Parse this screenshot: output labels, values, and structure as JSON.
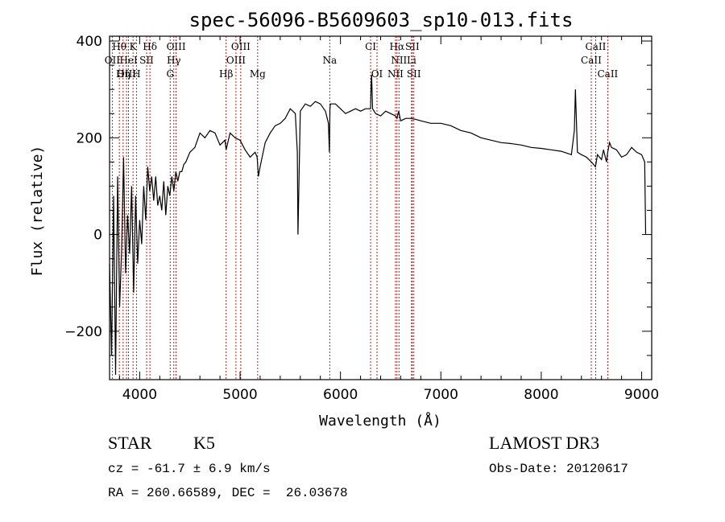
{
  "chart_data": {
    "type": "line",
    "title": "spec-56096-B5609603_sp10-013.fits",
    "xlabel": "Wavelength (Å)",
    "ylabel": "Flux (relative)",
    "xlim": [
      3700,
      9100
    ],
    "ylim": [
      -300,
      410
    ],
    "x_ticks": [
      4000,
      5000,
      6000,
      7000,
      8000,
      9000
    ],
    "y_ticks": [
      -200,
      0,
      200,
      400
    ],
    "grid": false,
    "series": [
      {
        "color": "#000000",
        "x": [
          3700,
          3720,
          3740,
          3760,
          3780,
          3800,
          3820,
          3840,
          3860,
          3880,
          3900,
          3920,
          3940,
          3960,
          3980,
          4000,
          4020,
          4040,
          4060,
          4080,
          4100,
          4120,
          4140,
          4160,
          4180,
          4200,
          4220,
          4240,
          4260,
          4280,
          4300,
          4320,
          4340,
          4360,
          4380,
          4400,
          4420,
          4440,
          4460,
          4480,
          4500,
          4550,
          4600,
          4650,
          4700,
          4750,
          4800,
          4850,
          4861,
          4900,
          4950,
          5000,
          5050,
          5100,
          5150,
          5170,
          5183,
          5200,
          5250,
          5300,
          5350,
          5400,
          5450,
          5500,
          5550,
          5570,
          5577,
          5600,
          5650,
          5700,
          5750,
          5800,
          5850,
          5880,
          5890,
          5895,
          5900,
          5950,
          6000,
          6050,
          6100,
          6150,
          6200,
          6250,
          6300,
          6305,
          6310,
          6320,
          6350,
          6400,
          6450,
          6500,
          6550,
          6563,
          6580,
          6600,
          6650,
          6700,
          6750,
          6800,
          6900,
          7000,
          7100,
          7200,
          7300,
          7400,
          7500,
          7600,
          7700,
          7800,
          7900,
          8000,
          8100,
          8200,
          8300,
          8330,
          8340,
          8360,
          8400,
          8450,
          8500,
          8540,
          8560,
          8600,
          8620,
          8650,
          8662,
          8680,
          8700,
          8750,
          8800,
          8850,
          8900,
          8950,
          9000,
          9030,
          9040
        ],
        "y": [
          -60,
          -250,
          80,
          -290,
          120,
          -150,
          -30,
          160,
          -80,
          40,
          -40,
          100,
          -120,
          80,
          -60,
          30,
          -20,
          100,
          30,
          140,
          90,
          120,
          70,
          120,
          60,
          80,
          50,
          110,
          40,
          100,
          80,
          120,
          90,
          130,
          110,
          130,
          130,
          145,
          150,
          160,
          170,
          180,
          210,
          200,
          215,
          210,
          185,
          195,
          175,
          210,
          200,
          195,
          175,
          160,
          170,
          160,
          120,
          140,
          190,
          210,
          225,
          230,
          240,
          260,
          250,
          170,
          0,
          255,
          270,
          265,
          275,
          270,
          255,
          230,
          170,
          260,
          270,
          270,
          260,
          250,
          255,
          260,
          255,
          260,
          260,
          310,
          330,
          260,
          250,
          245,
          255,
          250,
          245,
          240,
          255,
          235,
          240,
          240,
          238,
          235,
          230,
          230,
          225,
          215,
          210,
          200,
          195,
          190,
          188,
          185,
          180,
          178,
          175,
          172,
          165,
          215,
          300,
          170,
          165,
          160,
          150,
          140,
          165,
          155,
          175,
          150,
          170,
          190,
          180,
          175,
          160,
          165,
          180,
          170,
          165,
          150,
          0
        ]
      }
    ],
    "line_markers": [
      {
        "label": "Hθ",
        "x": 3797
      },
      {
        "label": "K",
        "x": 3934
      },
      {
        "label": "Hδ",
        "x": 4102
      },
      {
        "label": "OIII",
        "x": 4363
      },
      {
        "label": "OIII",
        "x": 5007
      },
      {
        "label": "CI",
        "x": 6300
      },
      {
        "label": "Hα",
        "x": 6563
      },
      {
        "label": "SII",
        "x": 6716
      },
      {
        "label": "CaII",
        "x": 8542
      },
      {
        "label": "OII",
        "x": 3727
      },
      {
        "label": "HeI",
        "x": 3889
      },
      {
        "label": "SII",
        "x": 4069
      },
      {
        "label": "Hγ",
        "x": 4340
      },
      {
        "label": "OIII",
        "x": 4959
      },
      {
        "label": "Na",
        "x": 5893
      },
      {
        "label": "NII",
        "x": 6583
      },
      {
        "label": "Li",
        "x": 6708
      },
      {
        "label": "CaII",
        "x": 8498
      },
      {
        "label": "OIII",
        "x": 3869
      },
      {
        "label": "Hη",
        "x": 3835
      },
      {
        "label": "H",
        "x": 3968
      },
      {
        "label": "G",
        "x": 4304
      },
      {
        "label": "Hβ",
        "x": 4861
      },
      {
        "label": "Mg",
        "x": 5175
      },
      {
        "label": "OI",
        "x": 6364
      },
      {
        "label": "NII",
        "x": 6548
      },
      {
        "label": "SII",
        "x": 6731
      },
      {
        "label": "CaII",
        "x": 8662
      }
    ]
  },
  "info": {
    "object_class": "STAR",
    "subclass": "K5",
    "survey": "LAMOST DR3",
    "cz": "cz = -61.7 ± 6.9 km/s",
    "obs_date": "Obs-Date: 20120617",
    "coords": "RA = 260.66589, DEC =  26.03678"
  }
}
